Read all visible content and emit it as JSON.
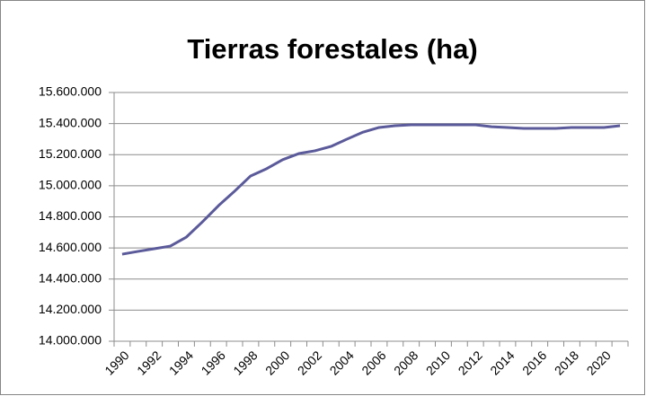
{
  "chart_data": {
    "type": "line",
    "title": "Tierras forestales (ha)",
    "categories": [
      "1990",
      null,
      "1992",
      null,
      "1994",
      null,
      "1996",
      null,
      "1998",
      null,
      "2000",
      null,
      "2002",
      null,
      "2004",
      null,
      "2006",
      null,
      "2008",
      null,
      "2010",
      null,
      "2012",
      null,
      "2014",
      null,
      "2016",
      null,
      "2018",
      null,
      "2020",
      null
    ],
    "series": [
      {
        "name": "Tierras forestales (ha)",
        "color": "#5b5a9a",
        "values": [
          14560000,
          14578000,
          14595000,
          14612000,
          14670000,
          14768000,
          14872000,
          14965000,
          15063000,
          15110000,
          15168000,
          15207000,
          15225000,
          15253000,
          15300000,
          15345000,
          15375000,
          15386000,
          15392000,
          15392000,
          15392000,
          15392000,
          15392000,
          15380000,
          15375000,
          15369000,
          15369000,
          15369000,
          15375000,
          15375000,
          15375000,
          15386000
        ]
      }
    ],
    "ylim": [
      14000000,
      15600000
    ],
    "yticks": [
      {
        "value": 14000000,
        "label": "14.000.000"
      },
      {
        "value": 14200000,
        "label": "14.200.000"
      },
      {
        "value": 14400000,
        "label": "14.400.000"
      },
      {
        "value": 14600000,
        "label": "14.600.000"
      },
      {
        "value": 14800000,
        "label": "14.800.000"
      },
      {
        "value": 15000000,
        "label": "15.000.000"
      },
      {
        "value": 15200000,
        "label": "15.200.000"
      },
      {
        "value": 15400000,
        "label": "15.400.000"
      },
      {
        "value": 15600000,
        "label": "15.600.000"
      }
    ],
    "grid": true,
    "legend": false
  }
}
